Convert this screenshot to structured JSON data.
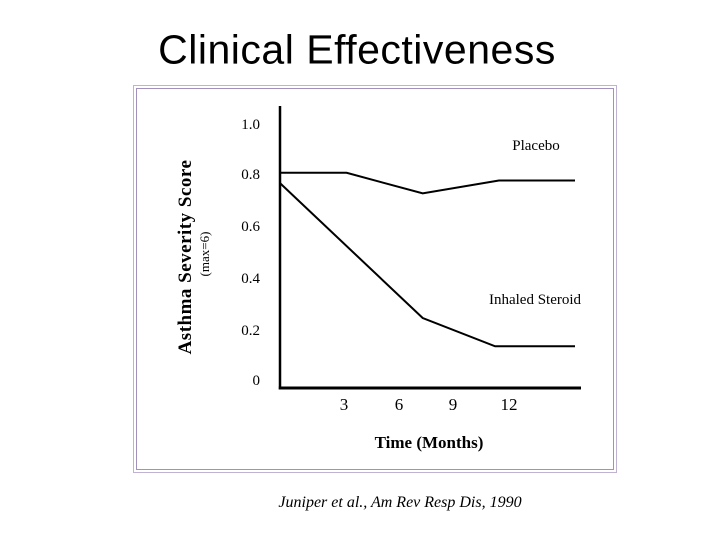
{
  "slide": {
    "title": "Clinical Effectiveness",
    "citation": "Juniper et al., Am Rev Resp Dis, 1990"
  },
  "chart_data": {
    "type": "line",
    "title": "",
    "xlabel": "Time (Months)",
    "ylabel": "Asthma Severity Score",
    "ylabel_note": "(max=6)",
    "xlim": [
      0,
      15.5
    ],
    "ylim": [
      0,
      1.0
    ],
    "grid": false,
    "legend_position": "inline-labels",
    "x_ticks": [
      "3",
      "6",
      "9",
      "12"
    ],
    "x_tick_values": [
      3,
      6,
      9,
      12
    ],
    "y_ticks": [
      "1.0",
      "0.8",
      "0.6",
      "0.4",
      "0.2",
      "0"
    ],
    "y_tick_values": [
      1.0,
      0.8,
      0.6,
      0.4,
      0.2,
      0
    ],
    "line_color": "#000000",
    "series": [
      {
        "name": "Placebo",
        "x": [
          0,
          3.5,
          7.5,
          11.5,
          15.5
        ],
        "values": [
          0.81,
          0.81,
          0.73,
          0.78,
          0.78
        ]
      },
      {
        "name": "Inhaled Steroid",
        "x": [
          0,
          7.5,
          11.3,
          15.5
        ],
        "values": [
          0.77,
          0.245,
          0.135,
          0.135
        ]
      }
    ]
  }
}
